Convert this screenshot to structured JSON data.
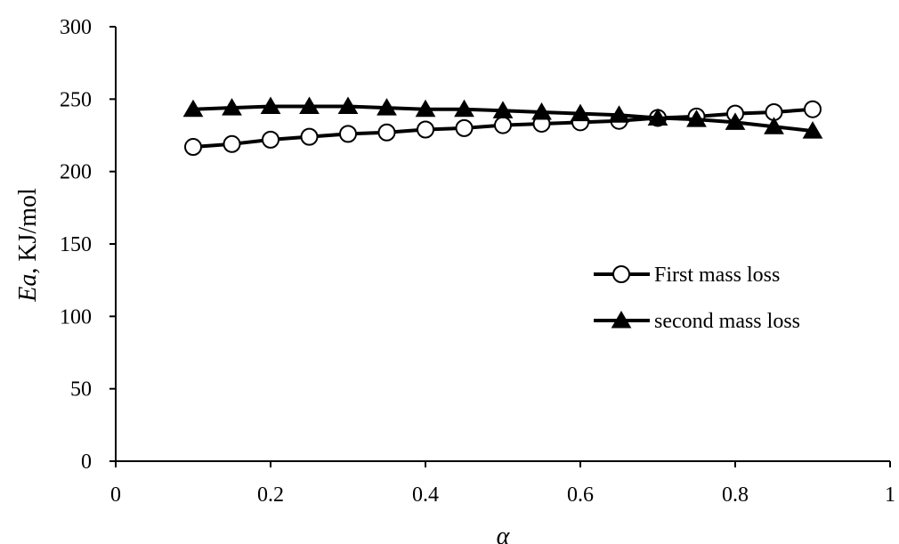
{
  "chart_data": {
    "type": "line",
    "title": "",
    "xlabel": "α",
    "ylabel_italic": "Ea",
    "ylabel_rest": ", KJ/mol",
    "xlim": [
      0,
      1
    ],
    "ylim": [
      0,
      300
    ],
    "x_ticks": [
      0,
      0.2,
      0.4,
      0.6,
      0.8,
      1
    ],
    "x_tick_labels": [
      "0",
      "0.2",
      "0.4",
      "0.6",
      "0.8",
      "1"
    ],
    "y_ticks": [
      0,
      50,
      100,
      150,
      200,
      250,
      300
    ],
    "y_tick_labels": [
      "0",
      "50",
      "100",
      "150",
      "200",
      "250",
      "300"
    ],
    "grid": false,
    "legend_position": "right-center",
    "x": [
      0.1,
      0.15,
      0.2,
      0.25,
      0.3,
      0.35,
      0.4,
      0.45,
      0.5,
      0.55,
      0.6,
      0.65,
      0.7,
      0.75,
      0.8,
      0.85,
      0.9
    ],
    "series": [
      {
        "name": "First mass loss",
        "marker": "circle-open",
        "color": "#000000",
        "values": [
          217,
          219,
          222,
          224,
          226,
          227,
          229,
          230,
          232,
          233,
          234,
          235,
          237,
          238,
          240,
          241,
          243
        ]
      },
      {
        "name": "second mass loss",
        "marker": "triangle-filled",
        "color": "#000000",
        "values": [
          243,
          244,
          245,
          245,
          245,
          244,
          243,
          243,
          242,
          241,
          240,
          239,
          237,
          236,
          234,
          231,
          228
        ]
      }
    ]
  }
}
